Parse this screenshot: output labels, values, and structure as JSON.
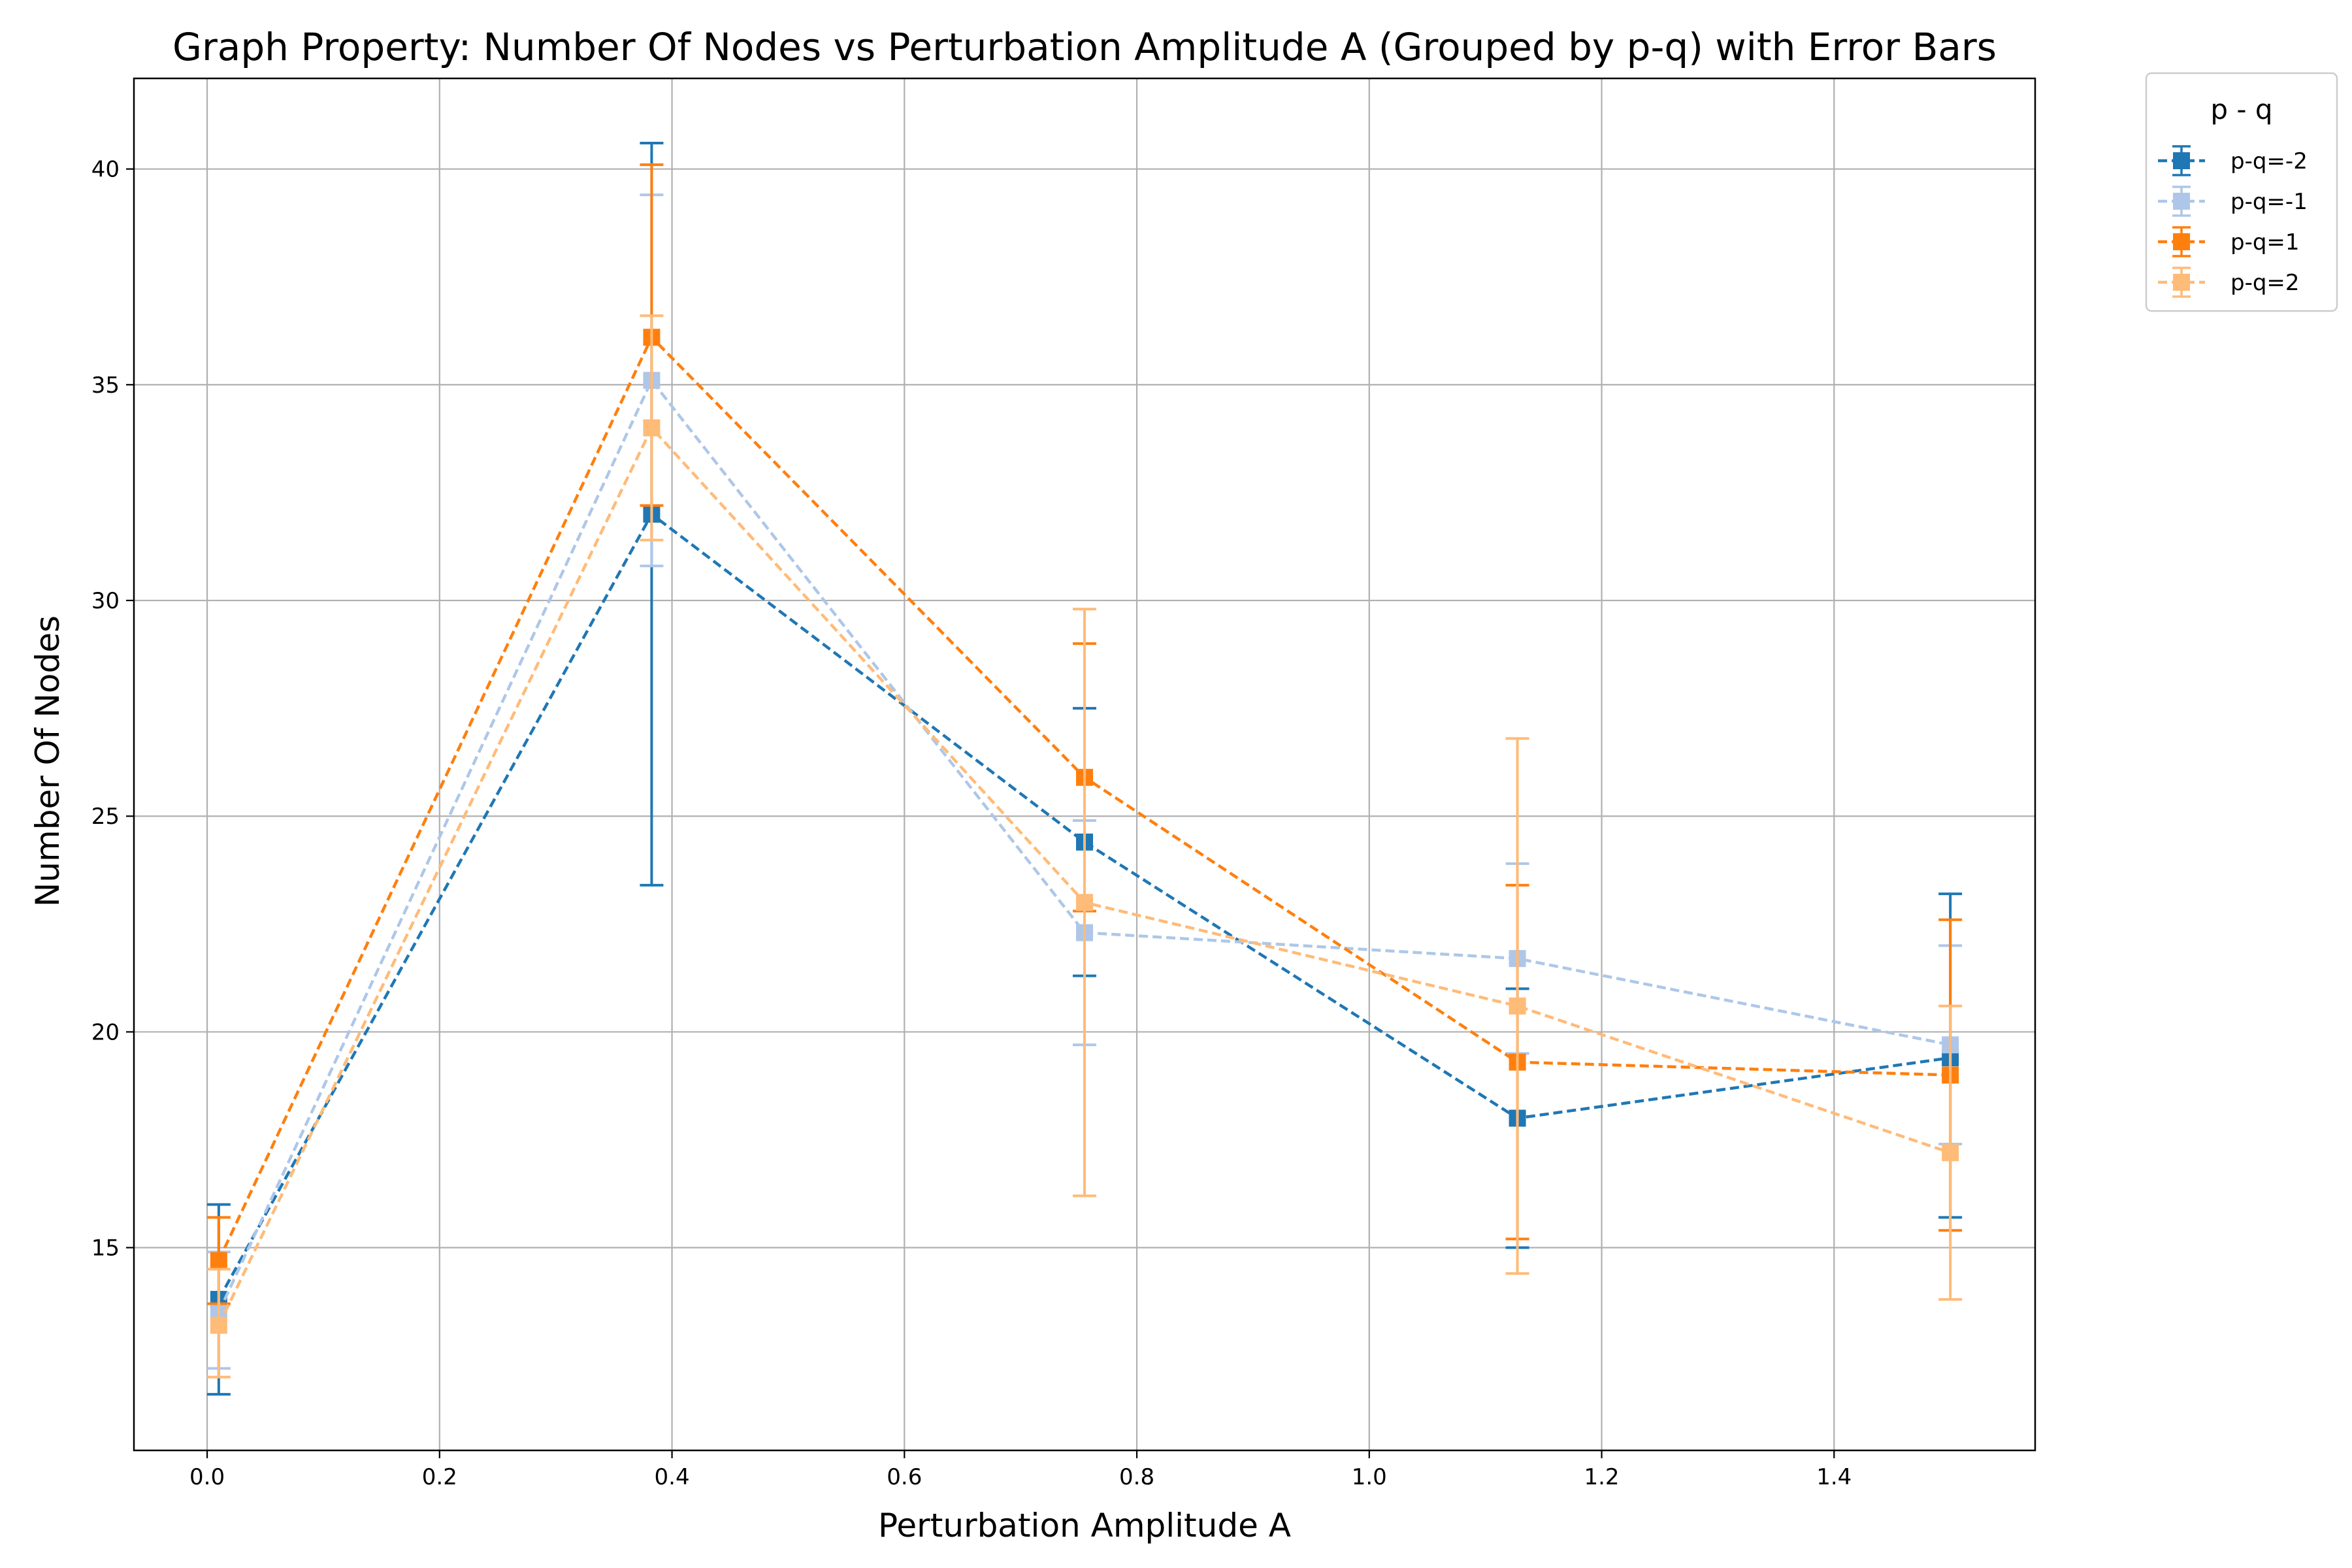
{
  "chart_data": {
    "type": "line",
    "title": "Graph Property: Number Of Nodes vs Perturbation Amplitude A (Grouped by p-q) with Error Bars",
    "xlabel": "Perturbation Amplitude A",
    "ylabel": "Number Of Nodes",
    "xlim": [
      -0.063,
      1.573
    ],
    "ylim": [
      10.3,
      42.1
    ],
    "xticks": [
      0.0,
      0.2,
      0.4,
      0.6,
      0.8,
      1.0,
      1.2,
      1.4
    ],
    "xtick_labels": [
      "0.0",
      "0.2",
      "0.4",
      "0.6",
      "0.8",
      "1.0",
      "1.2",
      "1.4"
    ],
    "yticks": [
      15,
      20,
      25,
      30,
      35,
      40
    ],
    "ytick_labels": [
      "15",
      "20",
      "25",
      "30",
      "35",
      "40"
    ],
    "grid": true,
    "legend_title": "p - q",
    "legend_placement": "outside top-right",
    "x": [
      0.01,
      0.3825,
      0.755,
      1.1275,
      1.5
    ],
    "series": [
      {
        "name": "p-q=-2",
        "color": "#1f77b4",
        "values": [
          13.8,
          32.0,
          24.4,
          18.0,
          19.4
        ],
        "err_low": [
          11.6,
          23.4,
          21.3,
          15.0,
          15.7
        ],
        "err_high": [
          16.0,
          40.6,
          27.5,
          21.0,
          23.2
        ]
      },
      {
        "name": "p-q=-1",
        "color": "#aec7e8",
        "values": [
          13.5,
          35.1,
          22.3,
          21.7,
          19.7
        ],
        "err_low": [
          12.2,
          30.8,
          19.7,
          19.5,
          17.4
        ],
        "err_high": [
          14.9,
          39.4,
          24.9,
          23.9,
          22.0
        ]
      },
      {
        "name": "p-q=1",
        "color": "#ff7f0e",
        "values": [
          14.7,
          36.1,
          25.9,
          19.3,
          19.0
        ],
        "err_low": [
          13.7,
          32.2,
          22.8,
          15.2,
          15.4
        ],
        "err_high": [
          15.7,
          40.1,
          29.0,
          23.4,
          22.6
        ]
      },
      {
        "name": "p-q=2",
        "color": "#ffbb78",
        "values": [
          13.2,
          34.0,
          23.0,
          20.6,
          17.2
        ],
        "err_low": [
          12.0,
          31.4,
          16.2,
          14.4,
          13.8
        ],
        "err_high": [
          14.5,
          36.6,
          29.8,
          26.8,
          20.6
        ]
      }
    ]
  }
}
